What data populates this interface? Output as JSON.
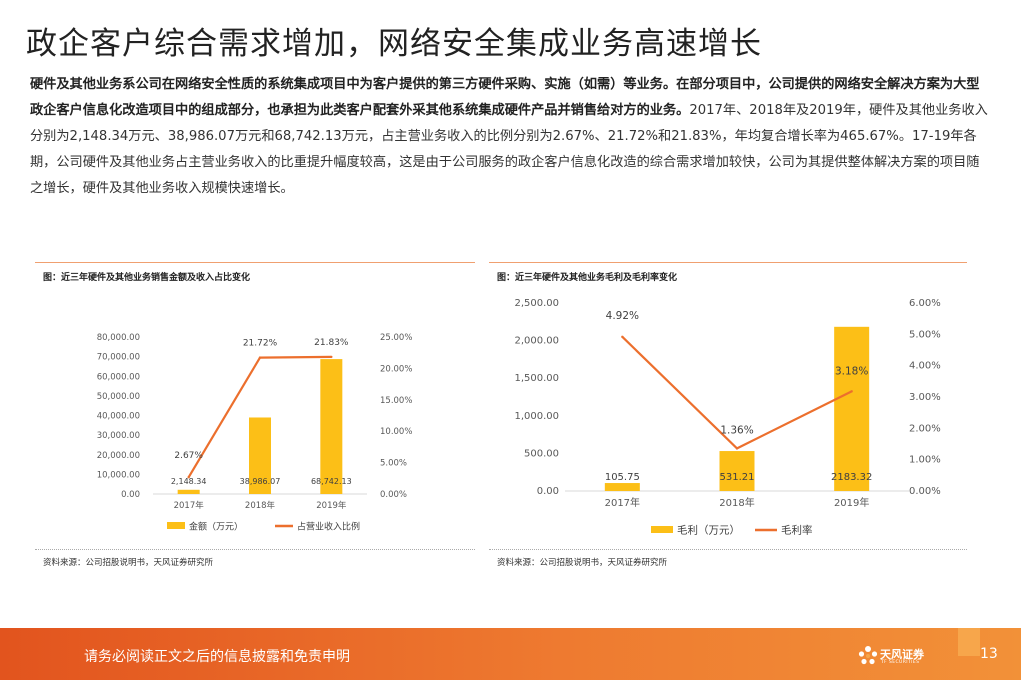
{
  "page": {
    "title": "政企客户综合需求增加，网络安全集成业务高速增长",
    "paragraph_bold": "硬件及其他业务系公司在网络安全性质的系统集成项目中为客户提供的第三方硬件采购、实施（如需）等业务。在部分项目中，公司提供的网络安全解决方案为大型政企客户信息化改造项目中的组成部分，也承担为此类客户配套外采其他系统集成硬件产品并销售给对方的业务。",
    "paragraph_rest": "2017年、2018年及2019年，硬件及其他业务收入分别为2,148.34万元、38,986.07万元和68,742.13万元，占主营业务收入的比例分别为2.67%、21.72%和21.83%，年均复合增长率为465.67%。17-19年各期，公司硬件及其他业务占主营业务收入的比重提升幅度较高，这是由于公司服务的政企客户信息化改造的综合需求增加较快，公司为其提供整体解决方案的项目随之增长，硬件及其他业务收入规模快速增长。"
  },
  "footer": {
    "disclaimer": "请务必阅读正文之后的信息披露和免责申明",
    "logo_cn": "天风证券",
    "logo_en": "TF SECURITIES",
    "page_number": "13"
  },
  "colors": {
    "bar": "#fcbf17",
    "line": "#ec6f2d",
    "footer": "#e96a27"
  },
  "chart_data": [
    {
      "type": "bar",
      "title": "图：近三年硬件及其他业务销售金额及收入占比变化",
      "source": "资料来源：公司招股说明书，天风证券研究所",
      "categories": [
        "2017年",
        "2018年",
        "2019年"
      ],
      "series": [
        {
          "name": "金额（万元）",
          "type": "bar",
          "axis": "left",
          "values": [
            2148.34,
            38986.07,
            68742.13
          ],
          "labels": [
            "2,148.34",
            "38,986.07",
            "68,742.13"
          ]
        },
        {
          "name": "占营业收入比例",
          "type": "line",
          "axis": "right",
          "values": [
            2.67,
            21.72,
            21.83
          ],
          "labels": [
            "2.67%",
            "21.72%",
            "21.83%"
          ]
        }
      ],
      "y_left": {
        "min": 0,
        "max": 80000,
        "ticks": [
          0,
          10000,
          20000,
          30000,
          40000,
          50000,
          60000,
          70000,
          80000
        ],
        "tick_labels": [
          "0.00",
          "10,000.00",
          "20,000.00",
          "30,000.00",
          "40,000.00",
          "50,000.00",
          "60,000.00",
          "70,000.00",
          "80,000.00"
        ]
      },
      "y_right": {
        "min": 0,
        "max": 25,
        "ticks": [
          0,
          5,
          10,
          15,
          20,
          25
        ],
        "tick_labels": [
          "0.00%",
          "5.00%",
          "10.00%",
          "15.00%",
          "20.00%",
          "25.00%"
        ]
      },
      "legend_position": "bottom",
      "grid": false
    },
    {
      "type": "bar",
      "title": "图：近三年硬件及其他业务毛利及毛利率变化",
      "source": "资料来源：公司招股说明书，天风证券研究所",
      "categories": [
        "2017年",
        "2018年",
        "2019年"
      ],
      "series": [
        {
          "name": "毛利（万元）",
          "type": "bar",
          "axis": "left",
          "values": [
            105.75,
            531.21,
            2183.32
          ],
          "labels": [
            "105.75",
            "531.21",
            "2183.32"
          ]
        },
        {
          "name": "毛利率",
          "type": "line",
          "axis": "right",
          "values": [
            4.92,
            1.36,
            3.18
          ],
          "labels": [
            "4.92%",
            "1.36%",
            "3.18%"
          ]
        }
      ],
      "y_left": {
        "min": 0,
        "max": 2500,
        "ticks": [
          0,
          500,
          1000,
          1500,
          2000,
          2500
        ],
        "tick_labels": [
          "0.00",
          "500.00",
          "1,000.00",
          "1,500.00",
          "2,000.00",
          "2,500.00"
        ]
      },
      "y_right": {
        "min": 0,
        "max": 6,
        "ticks": [
          0,
          1,
          2,
          3,
          4,
          5,
          6
        ],
        "tick_labels": [
          "0.00%",
          "1.00%",
          "2.00%",
          "3.00%",
          "4.00%",
          "5.00%",
          "6.00%"
        ]
      },
      "legend_position": "bottom",
      "grid": false
    }
  ]
}
